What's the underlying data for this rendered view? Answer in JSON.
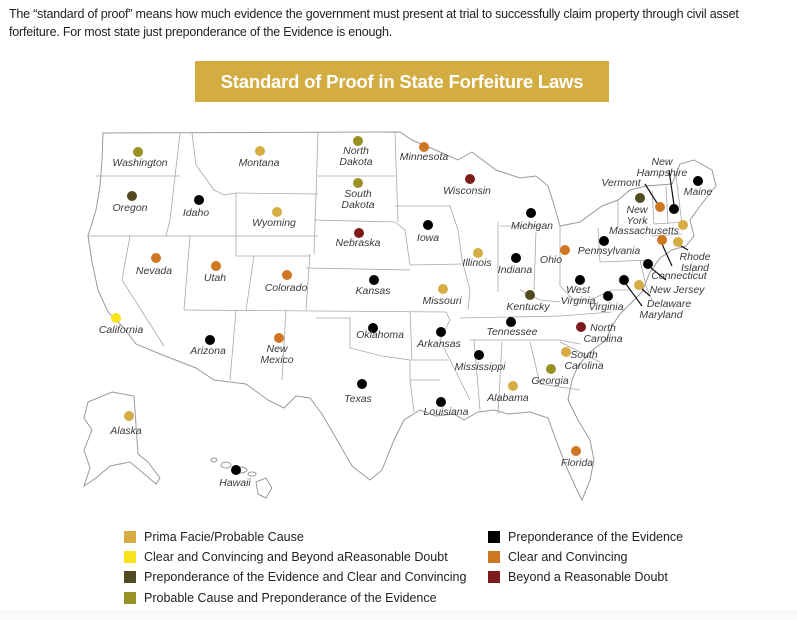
{
  "intro_text": "The “standard of proof” means how much evidence the government must present at trial to successfully claim property through civil asset forfeiture. For most state just preponderance of the Evidence is enough.",
  "title": "Standard of Proof in State Forfeiture Laws",
  "colors": {
    "banner": "#d3ac42",
    "prima_facie": "#d6ac45",
    "clear_beyond": "#f8e21c",
    "prepond_clear": "#524b22",
    "probable_prepond": "#9a9124",
    "preponderance": "#000000",
    "clear_convincing": "#cf7621",
    "beyond_reasonable": "#7d1b1d"
  },
  "legend": [
    {
      "key": "prima_facie",
      "label": "Prima Facie/Probable Cause"
    },
    {
      "key": "clear_beyond",
      "label": "Clear and Convincing and Beyond aReasonable Doubt"
    },
    {
      "key": "prepond_clear",
      "label": "Preponderance of the Evidence and Clear and Convincing"
    },
    {
      "key": "probable_prepond",
      "label": "Probable Cause and Preponderance of the Evidence"
    },
    {
      "key": "preponderance",
      "label": "Preponderance of the Evidence"
    },
    {
      "key": "clear_convincing",
      "label": "Clear and Convincing"
    },
    {
      "key": "beyond_reasonable",
      "label": "Beyond a Reasonable Doubt"
    }
  ],
  "states": [
    {
      "name": "Washington",
      "standard": "probable_prepond",
      "dot": [
        138,
        152
      ],
      "label": [
        140,
        158
      ]
    },
    {
      "name": "Montana",
      "standard": "prima_facie",
      "dot": [
        260,
        151
      ],
      "label": [
        259,
        158
      ]
    },
    {
      "name": "North Dakota",
      "standard": "probable_prepond",
      "dot": [
        358,
        141
      ],
      "label": [
        356,
        146
      ]
    },
    {
      "name": "Minnesota",
      "standard": "clear_convincing",
      "dot": [
        424,
        147
      ],
      "label": [
        424,
        152
      ]
    },
    {
      "name": "Oregon",
      "standard": "prepond_clear",
      "dot": [
        132,
        196
      ],
      "label": [
        130,
        203
      ]
    },
    {
      "name": "Idaho",
      "standard": "preponderance",
      "dot": [
        199,
        200
      ],
      "label": [
        196,
        208
      ]
    },
    {
      "name": "South Dakota",
      "standard": "probable_prepond",
      "dot": [
        358,
        183
      ],
      "label": [
        358,
        189
      ]
    },
    {
      "name": "Wyoming",
      "standard": "prima_facie",
      "dot": [
        277,
        212
      ],
      "label": [
        274,
        218
      ]
    },
    {
      "name": "Wisconsin",
      "standard": "beyond_reasonable",
      "dot": [
        470,
        179
      ],
      "label": [
        467,
        186
      ]
    },
    {
      "name": "Nebraska",
      "standard": "beyond_reasonable",
      "dot": [
        359,
        233
      ],
      "label": [
        358,
        238
      ]
    },
    {
      "name": "Iowa",
      "standard": "preponderance",
      "dot": [
        428,
        225
      ],
      "label": [
        428,
        233
      ]
    },
    {
      "name": "Michigan",
      "standard": "preponderance",
      "dot": [
        531,
        213
      ],
      "label": [
        532,
        221
      ]
    },
    {
      "name": "Nevada",
      "standard": "clear_convincing",
      "dot": [
        156,
        258
      ],
      "label": [
        154,
        266
      ]
    },
    {
      "name": "Utah",
      "standard": "clear_convincing",
      "dot": [
        216,
        266
      ],
      "label": [
        215,
        273
      ]
    },
    {
      "name": "Colorado",
      "standard": "clear_convincing",
      "dot": [
        287,
        275
      ],
      "label": [
        286,
        283
      ]
    },
    {
      "name": "Kansas",
      "standard": "preponderance",
      "dot": [
        374,
        280
      ],
      "label": [
        373,
        286
      ]
    },
    {
      "name": "Illinois",
      "standard": "prima_facie",
      "dot": [
        478,
        253
      ],
      "label": [
        477,
        258
      ]
    },
    {
      "name": "Indiana",
      "standard": "preponderance",
      "dot": [
        516,
        258
      ],
      "label": [
        515,
        265
      ]
    },
    {
      "name": "Ohio",
      "standard": "clear_convincing",
      "dot": [
        565,
        250
      ],
      "label": [
        551,
        255
      ]
    },
    {
      "name": "Pennsylvania",
      "standard": "preponderance",
      "dot": [
        604,
        241
      ],
      "label": [
        609,
        246
      ]
    },
    {
      "name": "Missouri",
      "standard": "prima_facie",
      "dot": [
        443,
        289
      ],
      "label": [
        442,
        296
      ]
    },
    {
      "name": "Kentucky",
      "standard": "prepond_clear",
      "dot": [
        530,
        295
      ],
      "label": [
        528,
        302
      ]
    },
    {
      "name": "West Virginia",
      "standard": "preponderance",
      "dot": [
        580,
        280
      ],
      "label": [
        578,
        285
      ]
    },
    {
      "name": "Virginia",
      "standard": "preponderance",
      "dot": [
        608,
        296
      ],
      "label": [
        606,
        302
      ]
    },
    {
      "name": "Maryland",
      "standard": "preponderance",
      "dot": [
        624,
        280
      ],
      "label": [
        661,
        310
      ]
    },
    {
      "name": "Delaware",
      "standard": "prima_facie",
      "dot": [
        639,
        285
      ],
      "label": [
        669,
        299
      ]
    },
    {
      "name": "New Jersey",
      "standard": "preponderance",
      "dot": [
        648,
        264
      ],
      "label": [
        677,
        285
      ]
    },
    {
      "name": "California",
      "standard": "clear_beyond",
      "dot": [
        116,
        318
      ],
      "label": [
        121,
        325
      ]
    },
    {
      "name": "Oklahoma",
      "standard": "preponderance",
      "dot": [
        373,
        328
      ],
      "label": [
        380,
        330
      ]
    },
    {
      "name": "Arkansas",
      "standard": "preponderance",
      "dot": [
        441,
        332
      ],
      "label": [
        439,
        339
      ]
    },
    {
      "name": "Tennessee",
      "standard": "preponderance",
      "dot": [
        511,
        322
      ],
      "label": [
        512,
        327
      ]
    },
    {
      "name": "North Carolina",
      "standard": "beyond_reasonable",
      "dot": [
        581,
        327
      ],
      "label": [
        603,
        323
      ]
    },
    {
      "name": "Arizona",
      "standard": "preponderance",
      "dot": [
        210,
        340
      ],
      "label": [
        208,
        346
      ]
    },
    {
      "name": "New Mexico",
      "standard": "clear_convincing",
      "dot": [
        279,
        338
      ],
      "label": [
        277,
        344
      ]
    },
    {
      "name": "Mississippi",
      "standard": "preponderance",
      "dot": [
        479,
        355
      ],
      "label": [
        480,
        362
      ]
    },
    {
      "name": "South Carolina",
      "standard": "prima_facie",
      "dot": [
        566,
        352
      ],
      "label": [
        584,
        350
      ]
    },
    {
      "name": "Georgia",
      "standard": "probable_prepond",
      "dot": [
        551,
        369
      ],
      "label": [
        550,
        376
      ]
    },
    {
      "name": "Alabama",
      "standard": "prima_facie",
      "dot": [
        513,
        386
      ],
      "label": [
        508,
        393
      ]
    },
    {
      "name": "Texas",
      "standard": "preponderance",
      "dot": [
        362,
        384
      ],
      "label": [
        358,
        394
      ]
    },
    {
      "name": "Louisiana",
      "standard": "preponderance",
      "dot": [
        441,
        402
      ],
      "label": [
        446,
        407
      ]
    },
    {
      "name": "Florida",
      "standard": "clear_convincing",
      "dot": [
        576,
        451
      ],
      "label": [
        577,
        458
      ]
    },
    {
      "name": "Alaska",
      "standard": "prima_facie",
      "dot": [
        129,
        416
      ],
      "label": [
        126,
        426
      ]
    },
    {
      "name": "Hawaii",
      "standard": "preponderance",
      "dot": [
        236,
        470
      ],
      "label": [
        235,
        478
      ]
    },
    {
      "name": "New York",
      "standard": "prepond_clear",
      "dot": [
        640,
        198
      ],
      "label": [
        637,
        205
      ]
    },
    {
      "name": "Vermont",
      "standard": "clear_convincing",
      "dot": [
        660,
        207
      ],
      "label": [
        621,
        178
      ]
    },
    {
      "name": "New Hampshire",
      "standard": "preponderance",
      "dot": [
        674,
        209
      ],
      "label": [
        662,
        157
      ]
    },
    {
      "name": "Maine",
      "standard": "preponderance",
      "dot": [
        698,
        181
      ],
      "label": [
        698,
        187
      ]
    },
    {
      "name": "Massachusetts",
      "standard": "prima_facie",
      "dot": [
        683,
        225
      ],
      "label": [
        644,
        226
      ]
    },
    {
      "name": "Connecticut",
      "standard": "clear_convincing",
      "dot": [
        662,
        240
      ],
      "label": [
        679,
        271
      ]
    },
    {
      "name": "Rhode Island",
      "standard": "prima_facie",
      "dot": [
        678,
        242
      ],
      "label": [
        695,
        252
      ]
    }
  ]
}
